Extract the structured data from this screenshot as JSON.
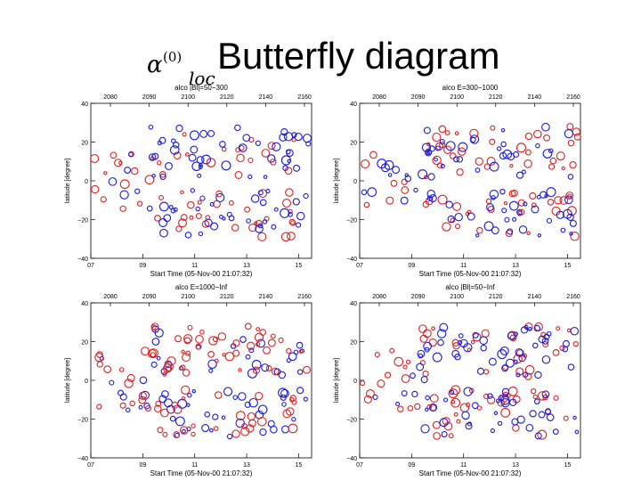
{
  "slide": {
    "title": "Butterfly diagram",
    "symbol": "α",
    "symbol_superscript": "(0)",
    "symbol_subscript": "loc"
  },
  "colors": {
    "series_a": "#1a1adc",
    "series_b": "#e02020",
    "axes": "#000000"
  },
  "chart_data": [
    {
      "type": "scatter",
      "title": "alco |Bl|=50−300",
      "xlabel": "Start Time (05-Nov-00 21:07:32)",
      "ylabel": "latitude [degree]",
      "xlim": [
        7,
        15.5
      ],
      "ylim": [
        -40,
        40
      ],
      "x_ticks": [
        "07",
        "09",
        "11",
        "13",
        "15"
      ],
      "y_ticks": [
        "40",
        "20",
        "0",
        "−20",
        "−40"
      ],
      "top_ticks": [
        "2080",
        "2090",
        "2100",
        "2120",
        "2140",
        "2160"
      ],
      "series": [
        {
          "name": "blue",
          "seed": 11,
          "counts": [
            6,
            46,
            36
          ],
          "x": [],
          "y": []
        },
        {
          "name": "red",
          "seed": 12,
          "counts": [
            14,
            18,
            30
          ],
          "x": [],
          "y": []
        }
      ]
    },
    {
      "type": "scatter",
      "title": "alco E=300−1000",
      "xlabel": "Start Time (05-Nov-00 21:07:32)",
      "ylabel": "latitude [degree]",
      "xlim": [
        7,
        15.5
      ],
      "ylim": [
        -40,
        40
      ],
      "x_ticks": [
        "07",
        "09",
        "11",
        "13",
        "15"
      ],
      "y_ticks": [
        "40",
        "20",
        "0",
        "−20",
        "−40"
      ],
      "top_ticks": [
        "2080",
        "2090",
        "2100",
        "2120",
        "2140",
        "2160"
      ],
      "series": [
        {
          "name": "blue",
          "seed": 21,
          "counts": [
            12,
            34,
            36
          ],
          "x": [],
          "y": []
        },
        {
          "name": "red",
          "seed": 22,
          "counts": [
            8,
            36,
            30
          ],
          "x": [],
          "y": []
        }
      ]
    },
    {
      "type": "scatter",
      "title": "alco E=1000−Inf",
      "xlabel": "Start Time (05-Nov-00 21:07:32)",
      "ylabel": "latitude [degree]",
      "xlim": [
        7,
        15.5
      ],
      "ylim": [
        -40,
        40
      ],
      "x_ticks": [
        "07",
        "09",
        "11",
        "13",
        "15"
      ],
      "y_ticks": [
        "40",
        "20",
        "0",
        "−20",
        "−40"
      ],
      "top_ticks": [
        "2080",
        "2090",
        "2100",
        "2120",
        "2140",
        "2160"
      ],
      "series": [
        {
          "name": "blue",
          "seed": 31,
          "counts": [
            10,
            26,
            38
          ],
          "x": [],
          "y": []
        },
        {
          "name": "red",
          "seed": 32,
          "counts": [
            14,
            48,
            30
          ],
          "x": [],
          "y": []
        }
      ]
    },
    {
      "type": "scatter",
      "title": "alco |Bl|=50−Inf",
      "xlabel": "Start Time (05-Nov-00 21:07:32)",
      "ylabel": "latitude [degree]",
      "xlim": [
        7,
        15.5
      ],
      "ylim": [
        -40,
        40
      ],
      "x_ticks": [
        "07",
        "09",
        "11",
        "13",
        "15"
      ],
      "y_ticks": [
        "40",
        "20",
        "0",
        "−20",
        "−40"
      ],
      "top_ticks": [
        "2080",
        "2090",
        "2100",
        "2120",
        "2140",
        "2160"
      ],
      "series": [
        {
          "name": "blue",
          "seed": 41,
          "counts": [
            8,
            44,
            36
          ],
          "x": [],
          "y": []
        },
        {
          "name": "red",
          "seed": 42,
          "counts": [
            16,
            30,
            36
          ],
          "x": [],
          "y": []
        }
      ]
    }
  ]
}
